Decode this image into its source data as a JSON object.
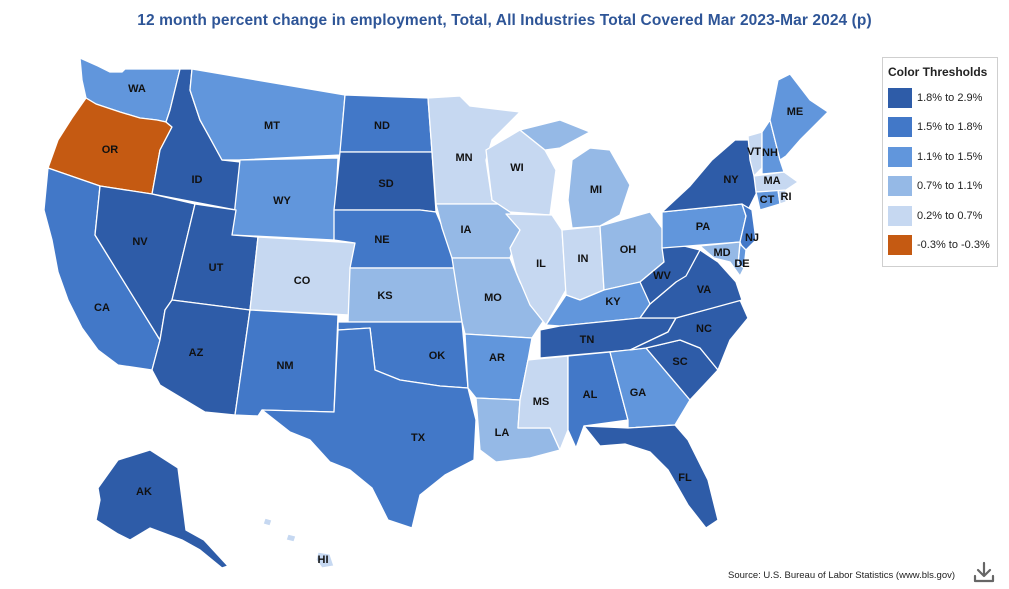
{
  "title": "12 month percent change in employment, Total, All Industries Total Covered Mar 2023-Mar 2024 (p)",
  "legend": {
    "title": "Color Thresholds",
    "items": [
      {
        "label": "1.8% to 2.9%",
        "color": "#2e5ca8"
      },
      {
        "label": "1.5% to 1.8%",
        "color": "#4278c8"
      },
      {
        "label": "1.1% to 1.5%",
        "color": "#6196dc"
      },
      {
        "label": "0.7% to 1.1%",
        "color": "#95b9e6"
      },
      {
        "label": "0.2% to 0.7%",
        "color": "#c6d8f1"
      },
      {
        "label": "-0.3% to -0.3%",
        "color": "#c55a12"
      }
    ]
  },
  "states": {
    "WA": {
      "label": "WA",
      "tier": 2
    },
    "OR": {
      "label": "OR",
      "tier": 5
    },
    "CA": {
      "label": "CA",
      "tier": 1
    },
    "ID": {
      "label": "ID",
      "tier": 0
    },
    "NV": {
      "label": "NV",
      "tier": 0
    },
    "MT": {
      "label": "MT",
      "tier": 2
    },
    "WY": {
      "label": "WY",
      "tier": 2
    },
    "UT": {
      "label": "UT",
      "tier": 0
    },
    "AZ": {
      "label": "AZ",
      "tier": 0
    },
    "CO": {
      "label": "CO",
      "tier": 4
    },
    "NM": {
      "label": "NM",
      "tier": 1
    },
    "ND": {
      "label": "ND",
      "tier": 1
    },
    "SD": {
      "label": "SD",
      "tier": 0
    },
    "NE": {
      "label": "NE",
      "tier": 1
    },
    "KS": {
      "label": "KS",
      "tier": 3
    },
    "OK": {
      "label": "OK",
      "tier": 1
    },
    "TX": {
      "label": "TX",
      "tier": 1
    },
    "MN": {
      "label": "MN",
      "tier": 4
    },
    "IA": {
      "label": "IA",
      "tier": 3
    },
    "MO": {
      "label": "MO",
      "tier": 3
    },
    "AR": {
      "label": "AR",
      "tier": 2
    },
    "LA": {
      "label": "LA",
      "tier": 3
    },
    "WI": {
      "label": "WI",
      "tier": 4
    },
    "IL": {
      "label": "IL",
      "tier": 4
    },
    "IN": {
      "label": "IN",
      "tier": 4
    },
    "MI": {
      "label": "MI",
      "tier": 3
    },
    "OH": {
      "label": "OH",
      "tier": 3
    },
    "KY": {
      "label": "KY",
      "tier": 2
    },
    "TN": {
      "label": "TN",
      "tier": 0
    },
    "MS": {
      "label": "MS",
      "tier": 4
    },
    "AL": {
      "label": "AL",
      "tier": 1
    },
    "GA": {
      "label": "GA",
      "tier": 2
    },
    "FL": {
      "label": "FL",
      "tier": 0
    },
    "SC": {
      "label": "SC",
      "tier": 0
    },
    "NC": {
      "label": "NC",
      "tier": 0
    },
    "VA": {
      "label": "VA",
      "tier": 0
    },
    "WV": {
      "label": "WV",
      "tier": 0
    },
    "PA": {
      "label": "PA",
      "tier": 2
    },
    "NY": {
      "label": "NY",
      "tier": 0
    },
    "NJ": {
      "label": "NJ",
      "tier": 1
    },
    "DE": {
      "label": "DE",
      "tier": 2
    },
    "MD": {
      "label": "MD",
      "tier": 3
    },
    "CT": {
      "label": "CT",
      "tier": 2
    },
    "RI": {
      "label": "RI",
      "tier": 4
    },
    "MA": {
      "label": "MA",
      "tier": 4
    },
    "VT": {
      "label": "VT",
      "tier": 4
    },
    "NH": {
      "label": "NH",
      "tier": 2
    },
    "ME": {
      "label": "ME",
      "tier": 2
    },
    "AK": {
      "label": "AK",
      "tier": 0
    },
    "HI": {
      "label": "HI",
      "tier": 4
    }
  },
  "source": "Source: U.S. Bureau of Labor Statistics (www.bls.gov)",
  "download_icon": "download-icon"
}
